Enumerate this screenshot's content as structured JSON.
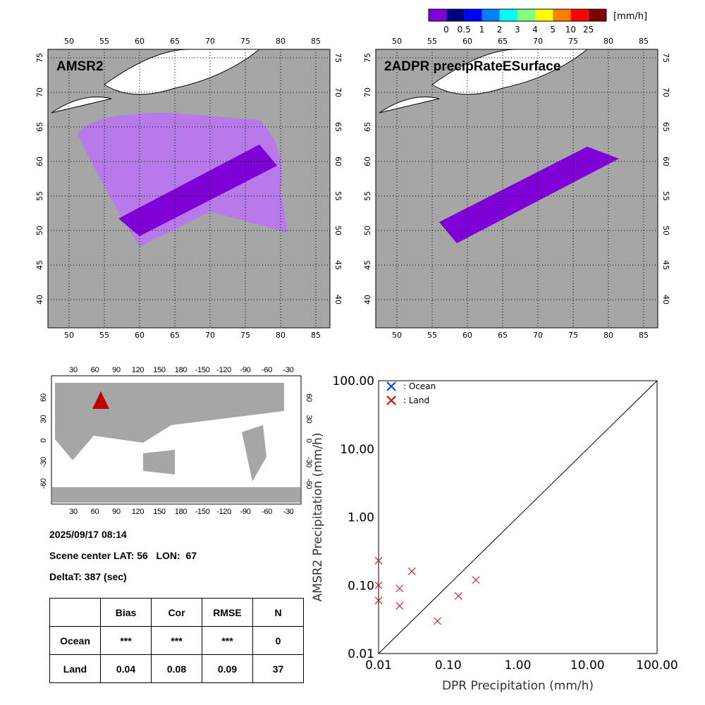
{
  "colorbar": {
    "unit": "[mm/h]",
    "labels": [
      "0",
      "0.5",
      "1",
      "2",
      "3",
      "4",
      "5",
      "10",
      "25"
    ],
    "colors": [
      "#8000d8",
      "#000080",
      "#0000ff",
      "#0080ff",
      "#00ffff",
      "#80ff80",
      "#ffff00",
      "#ff8000",
      "#ff0000",
      "#800000"
    ]
  },
  "maps": [
    {
      "title": "AMSR2",
      "lon_ticks": [
        "50",
        "55",
        "60",
        "65",
        "70",
        "75",
        "80",
        "85"
      ],
      "lat_ticks": [
        "40",
        "45",
        "50",
        "55",
        "60",
        "65",
        "70",
        "75"
      ]
    },
    {
      "title": "2ADPR precipRateESurface",
      "lon_ticks": [
        "50",
        "55",
        "60",
        "65",
        "70",
        "75",
        "80",
        "85"
      ],
      "lat_ticks": [
        "40",
        "45",
        "50",
        "55",
        "60",
        "65",
        "70",
        "75"
      ]
    }
  ],
  "world": {
    "lon_ticks": [
      "30",
      "60",
      "90",
      "120",
      "150",
      "180",
      "-150",
      "-120",
      "-90",
      "-60",
      "-30"
    ],
    "lat_ticks": [
      "60",
      "30",
      "0",
      "-30",
      "-60"
    ]
  },
  "info": {
    "datetime": "2025/09/17 08:14",
    "center": "Scene center LAT: 56   LON:  67",
    "deltat": "DeltaT:  387 (sec)"
  },
  "stats": {
    "headers": [
      "",
      "Bias",
      "Cor",
      "RMSE",
      "N"
    ],
    "rows": [
      [
        "Ocean",
        "***",
        "***",
        "***",
        "0"
      ],
      [
        "Land",
        "0.04",
        "0.08",
        "0.09",
        "37"
      ]
    ]
  },
  "chart_data": {
    "type": "scatter",
    "xlabel": "DPR Precipitation (mm/h)",
    "ylabel": "AMSR2 Precipitation (mm/h)",
    "xscale": "log",
    "yscale": "log",
    "xlim": [
      0.01,
      100
    ],
    "ylim": [
      0.01,
      100
    ],
    "tick_labels": [
      "0.01",
      "0.10",
      "1.00",
      "10.00",
      "100.00"
    ],
    "legend": [
      {
        "label": ": Ocean",
        "color": "#0040ff"
      },
      {
        "label": ": Land",
        "color": "#e00000"
      }
    ],
    "legend_placement": "top-left",
    "series": [
      {
        "name": "Ocean",
        "points": []
      },
      {
        "name": "Land",
        "points": [
          [
            0.01,
            0.23
          ],
          [
            0.01,
            0.1
          ],
          [
            0.01,
            0.06
          ],
          [
            0.02,
            0.09
          ],
          [
            0.02,
            0.05
          ],
          [
            0.03,
            0.16
          ],
          [
            0.07,
            0.03
          ],
          [
            0.14,
            0.07
          ],
          [
            0.25,
            0.12
          ]
        ]
      }
    ]
  }
}
